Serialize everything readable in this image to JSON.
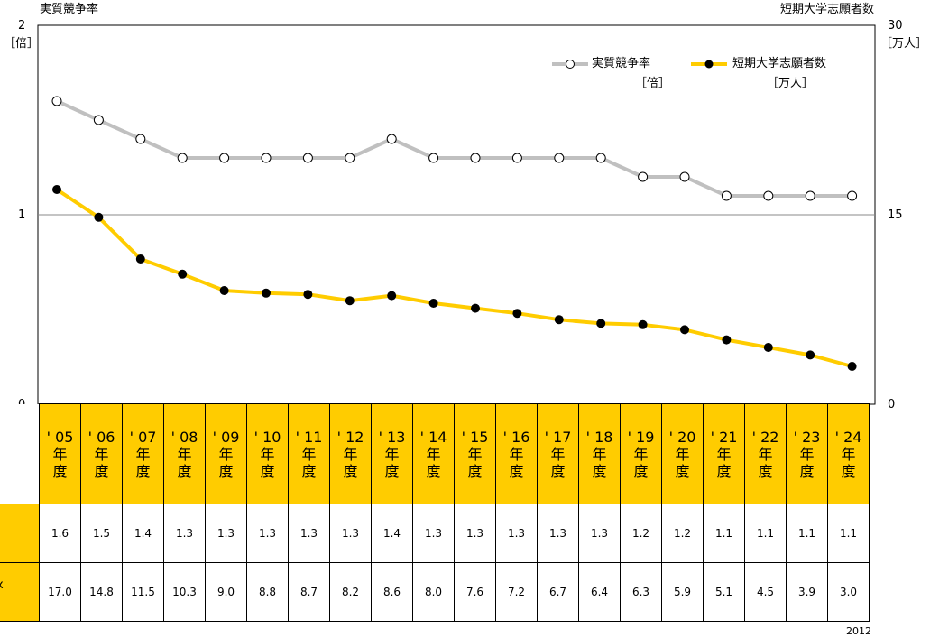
{
  "chart_data": {
    "type": "line",
    "categories": [
      "'05\n年\n度",
      "'06\n年\n度",
      "'07\n年\n度",
      "'08\n年\n度",
      "'09\n年\n度",
      "'10\n年\n度",
      "'11\n年\n度",
      "'12\n年\n度",
      "'13\n年\n度",
      "'14\n年\n度",
      "'15\n年\n度",
      "'16\n年\n度",
      "'17\n年\n度",
      "'18\n年\n度",
      "'19\n年\n度",
      "'20\n年\n度",
      "'21\n年\n度",
      "'22\n年\n度",
      "'23\n年\n度",
      "'24\n年\n度"
    ],
    "year_labels": [
      "' 05",
      "' 06",
      "' 07",
      "' 08",
      "' 09",
      "' 10",
      "' 11",
      "' 12",
      "' 13",
      "' 14",
      "' 15",
      "' 16",
      "' 17",
      "' 18",
      "' 19",
      "' 20",
      "' 21",
      "' 22",
      "' 23",
      "' 24"
    ],
    "year_suffix_1": "年",
    "year_suffix_2": "度",
    "y_left_title": "実質競争率",
    "y_left_unit": "［倍］",
    "y_left_ticks": [
      "2",
      "1",
      "0"
    ],
    "y_left_range": [
      0,
      2
    ],
    "y_right_title": "短期大学志願者数",
    "y_right_unit": "［万人］",
    "y_right_ticks": [
      "30",
      "15",
      "0"
    ],
    "y_right_range": [
      0,
      30
    ],
    "gridlines": [
      1
    ],
    "legend_position": "top-right",
    "series": [
      {
        "name": "実質競争率",
        "unit": "［倍］",
        "axis": "left",
        "color": "#c0c0c0",
        "marker": "open-circle",
        "values": [
          1.6,
          1.5,
          1.4,
          1.3,
          1.3,
          1.3,
          1.3,
          1.3,
          1.4,
          1.3,
          1.3,
          1.3,
          1.3,
          1.3,
          1.2,
          1.2,
          1.1,
          1.1,
          1.1,
          1.1
        ],
        "value_labels": [
          "1.6",
          "1.5",
          "1.4",
          "1.3",
          "1.3",
          "1.3",
          "1.3",
          "1.3",
          "1.4",
          "1.3",
          "1.3",
          "1.3",
          "1.3",
          "1.3",
          "1.2",
          "1.2",
          "1.1",
          "1.1",
          "1.1",
          "1.1"
        ]
      },
      {
        "name": "短期大学志願者数",
        "unit": "［万人］",
        "axis": "right",
        "color": "#ffcc00",
        "marker": "filled-circle",
        "values": [
          17.0,
          14.8,
          11.5,
          10.3,
          9.0,
          8.8,
          8.7,
          8.2,
          8.6,
          8.0,
          7.6,
          7.2,
          6.7,
          6.4,
          6.3,
          5.9,
          5.1,
          4.5,
          3.9,
          3.0
        ],
        "value_labels": [
          "17.0",
          "14.8",
          "11.5",
          "10.3",
          "9.0",
          "8.8",
          "8.7",
          "8.2",
          "8.6",
          "8.0",
          "7.6",
          "7.2",
          "6.7",
          "6.4",
          "6.3",
          "5.9",
          "5.1",
          "4.5",
          "3.9",
          "3.0"
        ]
      }
    ],
    "row_label_1_top": "",
    "row_label_1_bottom": "]",
    "row_label_2_top": "x",
    "row_label_2_bottom": "]",
    "footnote": "2012"
  }
}
